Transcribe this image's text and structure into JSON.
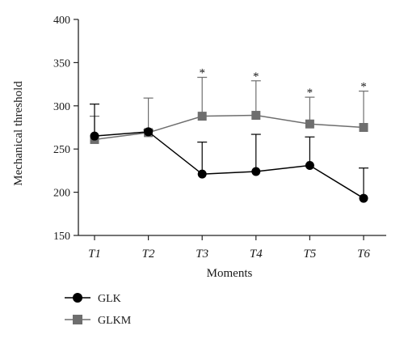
{
  "chart_data": {
    "type": "line",
    "title": "",
    "xlabel": "Moments",
    "ylabel": "Mechanical threshold",
    "categories": [
      "T1",
      "T2",
      "T3",
      "T4",
      "T5",
      "T6"
    ],
    "ylim": [
      150,
      400
    ],
    "yticks": [
      150,
      200,
      250,
      300,
      350,
      400
    ],
    "grid": false,
    "legend_position": "bottom-left",
    "series": [
      {
        "name": "GLK",
        "marker": "circle",
        "color": "#000000",
        "values": [
          265,
          270,
          221,
          224,
          231,
          193
        ],
        "error_upper": [
          302,
          272,
          258,
          267,
          264,
          228
        ]
      },
      {
        "name": "GLKM",
        "marker": "square",
        "color": "#6e6e6e",
        "values": [
          261,
          269,
          288,
          289,
          279,
          275
        ],
        "error_upper": [
          288,
          309,
          333,
          329,
          310,
          317
        ]
      }
    ],
    "annotations": [
      {
        "category": "T3",
        "text": "*"
      },
      {
        "category": "T4",
        "text": "*"
      },
      {
        "category": "T5",
        "text": "*"
      },
      {
        "category": "T6",
        "text": "*"
      }
    ]
  }
}
